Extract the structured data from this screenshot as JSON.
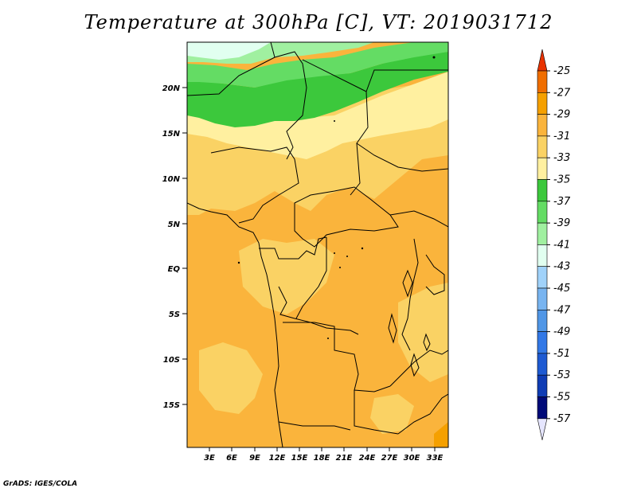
{
  "title": "Temperature at 300hPa [C], VT: 2019031712",
  "credit": "GrADS: IGES/COLA",
  "lat_ticks": [
    "20N",
    "15N",
    "10N",
    "5N",
    "EQ",
    "5S",
    "10S",
    "15S"
  ],
  "lon_ticks": [
    "3E",
    "6E",
    "9E",
    "12E",
    "15E",
    "18E",
    "21E",
    "24E",
    "27E",
    "30E",
    "33E"
  ],
  "colorbar": {
    "labels": [
      "-25",
      "-27",
      "-29",
      "-31",
      "-33",
      "-35",
      "-37",
      "-39",
      "-41",
      "-43",
      "-45",
      "-47",
      "-49",
      "-51",
      "-53",
      "-55",
      "-57"
    ],
    "colors": [
      "#e83200",
      "#f06e00",
      "#f5a000",
      "#fab43c",
      "#fad264",
      "#fff0a0",
      "#3cc83c",
      "#64dc64",
      "#a0f0a0",
      "#e1fff0",
      "#a0d2fa",
      "#78b4f0",
      "#5096e6",
      "#3278e6",
      "#1e5ad2",
      "#0f3cb4",
      "#000a78",
      "#e6e6ff"
    ]
  },
  "colors": {
    "warm_dark": "#fab43c",
    "warm_mid": "#fad264",
    "warm_light": "#fff0a0",
    "green_dark": "#3cc83c",
    "green_mid": "#64dc64",
    "green_light": "#a0f0a0",
    "cyan": "#e1fff0",
    "orange": "#f5a000"
  }
}
